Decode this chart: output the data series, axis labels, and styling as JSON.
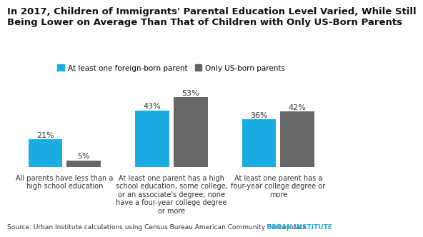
{
  "title": "In 2017, Children of Immigrants' Parental Education Level Varied, While Still\nBeing Lower on Average Than That of Children with Only US-Born Parents",
  "categories": [
    "All parents have less than a\nhigh school education",
    "At least one parent has a high\nschool education, some college,\nor an associate's degree; none\nhave a four-year college degree\nor more",
    "At least one parent has a\nfour-year college degree or\nmore"
  ],
  "series": [
    {
      "name": "At least one foreign-born parent",
      "values": [
        21,
        43,
        36
      ],
      "color": "#1aace3"
    },
    {
      "name": "Only US-born parents",
      "values": [
        5,
        53,
        42
      ],
      "color": "#666666"
    }
  ],
  "ylabel": "",
  "ylim": [
    0,
    60
  ],
  "source": "Source: Urban Institute calculations using Census Bureau American Community Survey data.",
  "source_brand": "URBAN INSTITUTE",
  "background_color": "#ffffff",
  "title_fontsize": 9.5,
  "legend_fontsize": 7.5,
  "label_fontsize": 8,
  "tick_fontsize": 7,
  "source_fontsize": 6.5
}
